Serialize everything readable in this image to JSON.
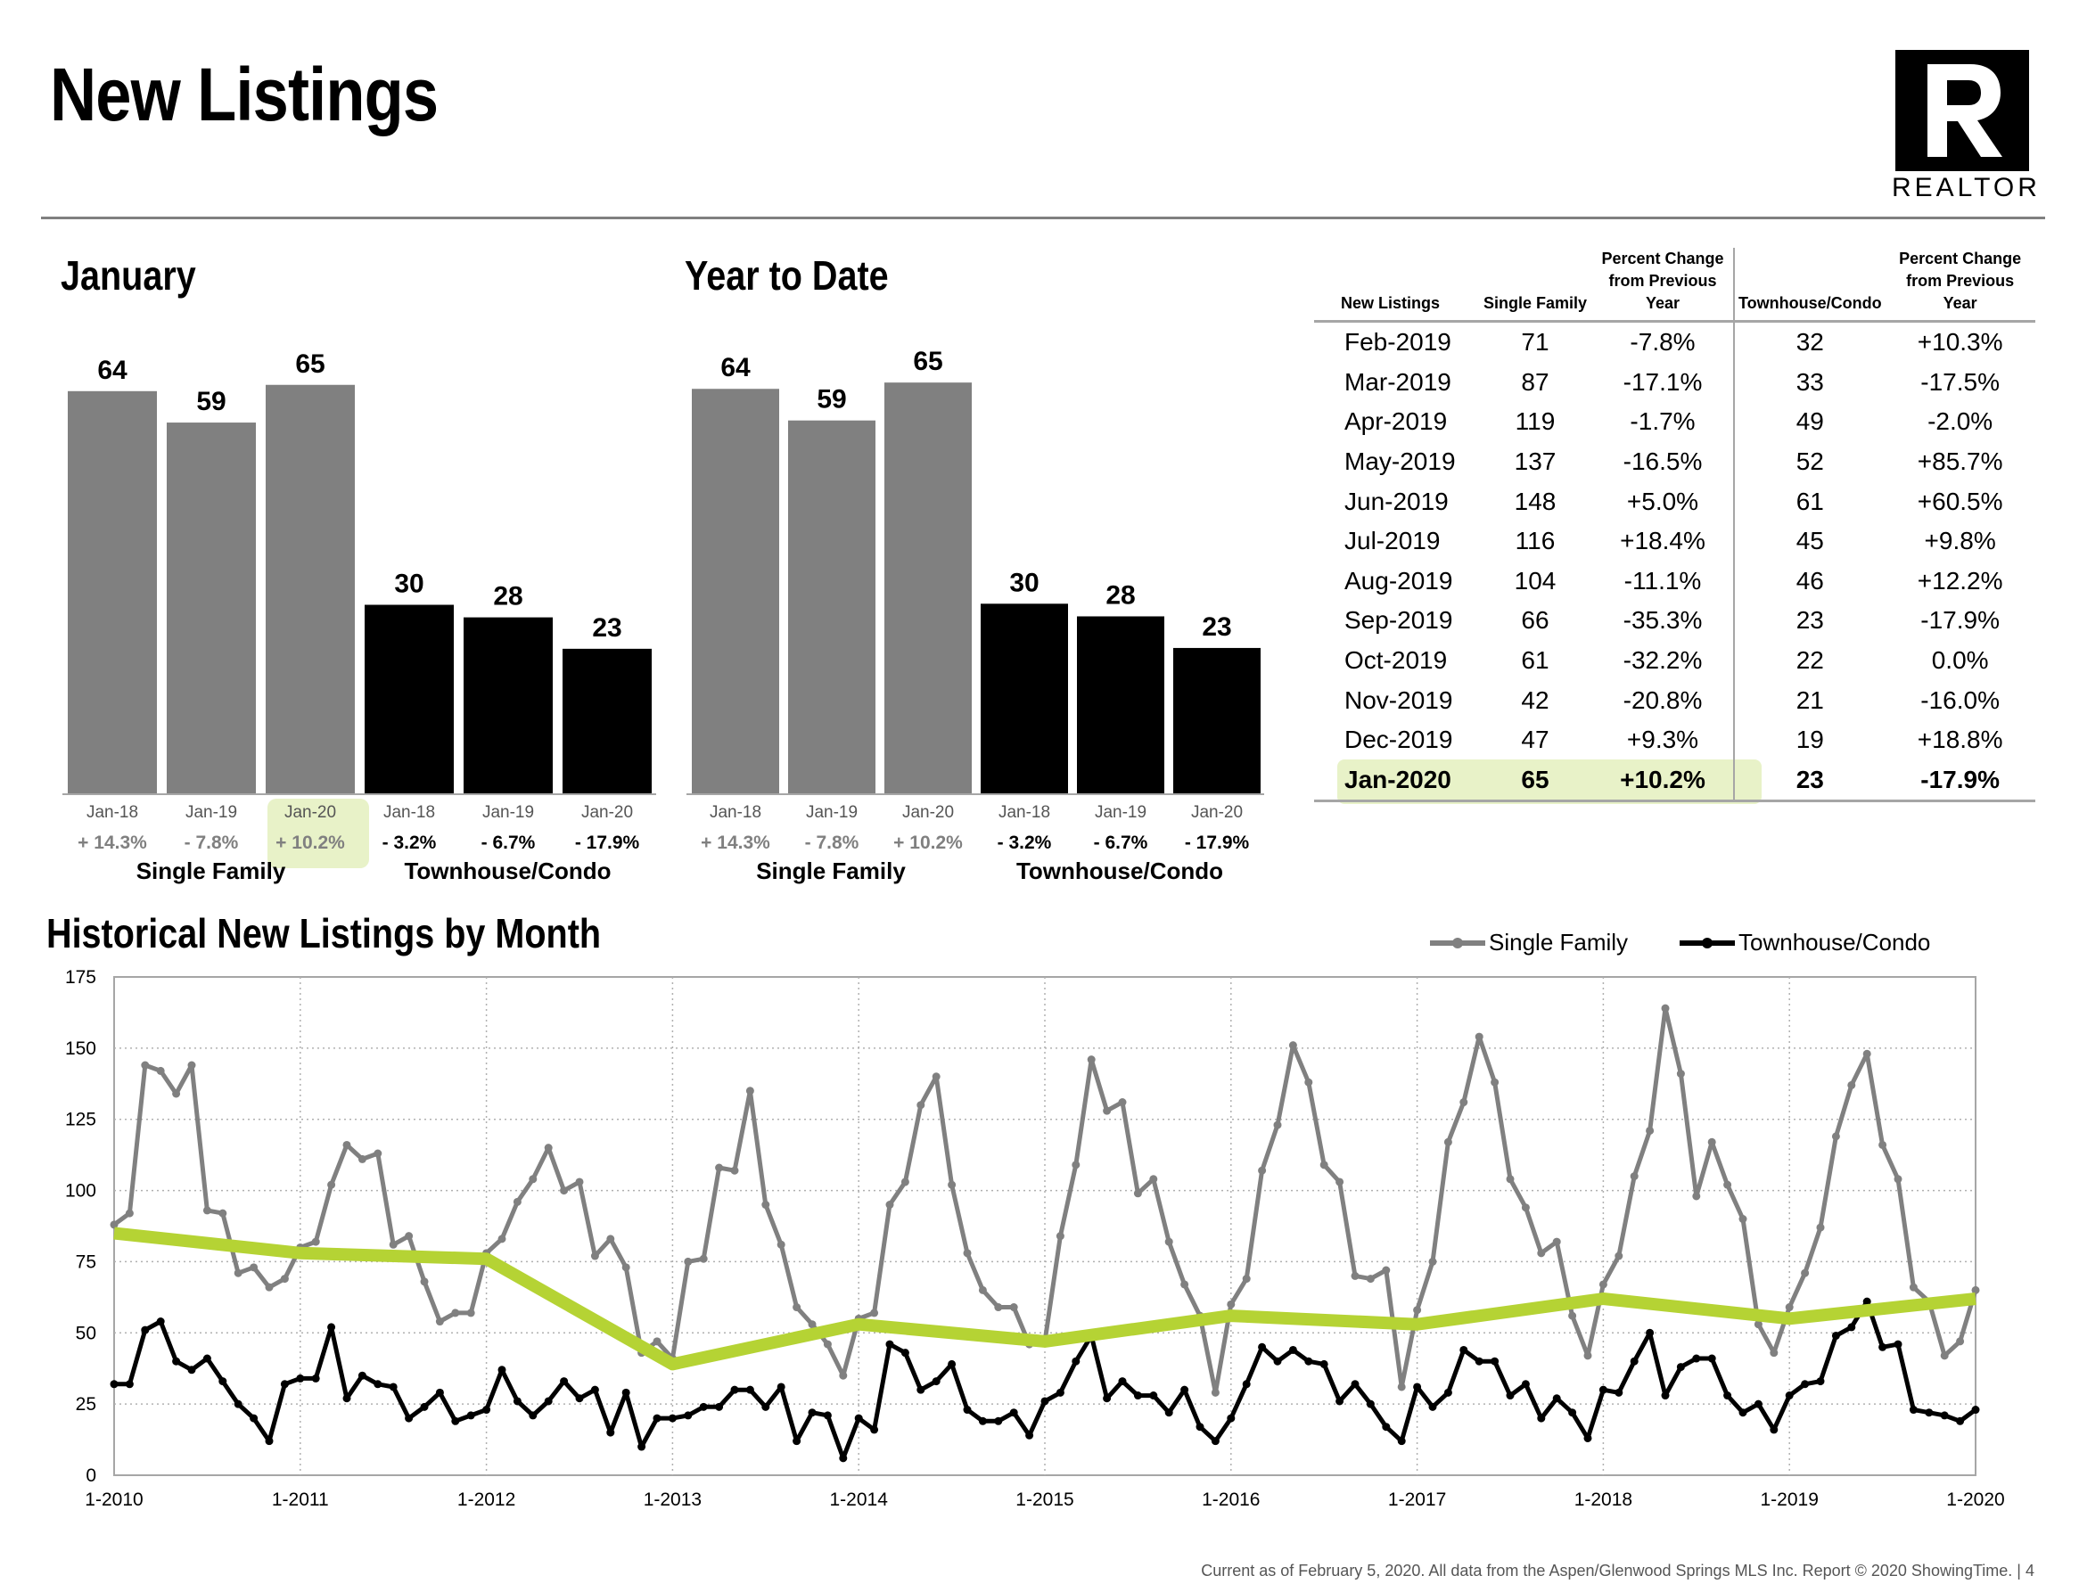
{
  "page": {
    "title": "New Listings",
    "logo_text": "REALTOR",
    "footer": "Current as of February 5, 2020.  All data from the Aspen/Glenwood Springs MLS Inc. Report © 2020 ShowingTime.  |  4"
  },
  "colors": {
    "single_family": "#808080",
    "townhouse": "#000000",
    "highlight": "#e8f2c8",
    "trend": "#b5d334"
  },
  "chart_data": [
    {
      "type": "bar",
      "title": "January",
      "groups": [
        "Single Family",
        "Townhouse/Condo"
      ],
      "categories": [
        "Jan-18",
        "Jan-19",
        "Jan-20",
        "Jan-18",
        "Jan-19",
        "Jan-20"
      ],
      "values": [
        64,
        59,
        65,
        30,
        28,
        23
      ],
      "changes": [
        "+ 14.3%",
        "- 7.8%",
        "+ 10.2%",
        "- 3.2%",
        "- 6.7%",
        "- 17.9%"
      ]
    },
    {
      "type": "bar",
      "title": "Year to Date",
      "groups": [
        "Single Family",
        "Townhouse/Condo"
      ],
      "categories": [
        "Jan-18",
        "Jan-19",
        "Jan-20",
        "Jan-18",
        "Jan-19",
        "Jan-20"
      ],
      "values": [
        64,
        59,
        65,
        30,
        28,
        23
      ],
      "changes": [
        "+ 14.3%",
        "- 7.8%",
        "+ 10.2%",
        "- 3.2%",
        "- 6.7%",
        "- 17.9%"
      ]
    },
    {
      "type": "table",
      "columns": [
        "New Listings",
        "Single Family",
        "Percent Change from Previous Year",
        "Townhouse/Condo",
        "Percent Change from Previous Year"
      ],
      "rows": [
        [
          "Feb-2019",
          "71",
          "-7.8%",
          "32",
          "+10.3%"
        ],
        [
          "Mar-2019",
          "87",
          "-17.1%",
          "33",
          "-17.5%"
        ],
        [
          "Apr-2019",
          "119",
          "-1.7%",
          "49",
          "-2.0%"
        ],
        [
          "May-2019",
          "137",
          "-16.5%",
          "52",
          "+85.7%"
        ],
        [
          "Jun-2019",
          "148",
          "+5.0%",
          "61",
          "+60.5%"
        ],
        [
          "Jul-2019",
          "116",
          "+18.4%",
          "45",
          "+9.8%"
        ],
        [
          "Aug-2019",
          "104",
          "-11.1%",
          "46",
          "+12.2%"
        ],
        [
          "Sep-2019",
          "66",
          "-35.3%",
          "23",
          "-17.9%"
        ],
        [
          "Oct-2019",
          "61",
          "-32.2%",
          "22",
          "0.0%"
        ],
        [
          "Nov-2019",
          "42",
          "-20.8%",
          "21",
          "-16.0%"
        ],
        [
          "Dec-2019",
          "47",
          "+9.3%",
          "19",
          "+18.8%"
        ],
        [
          "Jan-2020",
          "65",
          "+10.2%",
          "23",
          "-17.9%"
        ]
      ]
    },
    {
      "type": "line",
      "title": "Historical New Listings by Month",
      "x_labels": [
        "1-2010",
        "1-2011",
        "1-2012",
        "1-2013",
        "1-2014",
        "1-2015",
        "1-2016",
        "1-2017",
        "1-2018",
        "1-2019",
        "1-2020"
      ],
      "ylim": [
        0,
        175
      ],
      "yticks": [
        0,
        25,
        50,
        75,
        100,
        125,
        150,
        175
      ],
      "grid": true,
      "legend": "top-right",
      "series": [
        {
          "name": "Single Family",
          "values": [
            88,
            92,
            144,
            142,
            134,
            144,
            93,
            92,
            71,
            73,
            66,
            69,
            80,
            82,
            102,
            116,
            111,
            113,
            81,
            84,
            68,
            54,
            57,
            57,
            78,
            83,
            96,
            104,
            115,
            100,
            103,
            77,
            83,
            73,
            43,
            47,
            41,
            75,
            76,
            108,
            107,
            135,
            95,
            81,
            59,
            53,
            46,
            35,
            55,
            57,
            95,
            103,
            130,
            140,
            102,
            78,
            65,
            59,
            59,
            46,
            47,
            84,
            109,
            146,
            128,
            131,
            99,
            104,
            82,
            67,
            56,
            29,
            60,
            69,
            107,
            123,
            151,
            138,
            109,
            103,
            70,
            69,
            72,
            31,
            58,
            75,
            117,
            131,
            154,
            138,
            104,
            94,
            78,
            82,
            56,
            42,
            67,
            77,
            105,
            121,
            164,
            141,
            98,
            117,
            102,
            90,
            53,
            43,
            59,
            71,
            87,
            119,
            137,
            148,
            116,
            104,
            66,
            61,
            42,
            47,
            65
          ]
        },
        {
          "name": "Townhouse/Condo",
          "values": [
            32,
            32,
            51,
            54,
            40,
            37,
            41,
            33,
            25,
            20,
            12,
            32,
            34,
            34,
            52,
            27,
            35,
            32,
            31,
            20,
            24,
            29,
            19,
            21,
            23,
            37,
            26,
            21,
            26,
            33,
            27,
            30,
            15,
            29,
            10,
            20,
            20,
            21,
            24,
            24,
            30,
            30,
            24,
            31,
            12,
            22,
            21,
            6,
            20,
            16,
            46,
            43,
            30,
            33,
            39,
            23,
            19,
            19,
            22,
            14,
            26,
            29,
            40,
            49,
            27,
            33,
            28,
            28,
            22,
            30,
            17,
            12,
            20,
            32,
            45,
            40,
            44,
            40,
            39,
            26,
            32,
            25,
            17,
            12,
            31,
            24,
            29,
            44,
            40,
            40,
            28,
            32,
            20,
            27,
            22,
            13,
            30,
            29,
            40,
            50,
            28,
            38,
            41,
            41,
            28,
            22,
            25,
            16,
            28,
            32,
            33,
            49,
            52,
            61,
            45,
            46,
            23,
            22,
            21,
            19,
            23
          ]
        },
        {
          "name": "trend",
          "values": [
            85,
            78,
            76,
            39,
            53,
            47,
            56,
            53,
            62,
            55,
            62
          ]
        }
      ]
    }
  ]
}
